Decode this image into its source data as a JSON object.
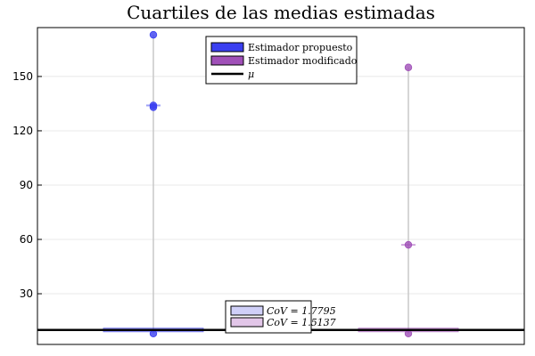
{
  "chart_data": {
    "type": "box",
    "title": "Cuartiles de las medias estimadas",
    "xlabel": "",
    "ylabel": "",
    "ylim": [
      2,
      177
    ],
    "yticks": [
      30,
      60,
      90,
      120,
      150
    ],
    "grid": true,
    "legend_position": "top-center",
    "mu": 10,
    "series": [
      {
        "name": "Estimador propuesto",
        "color": "#3a3ff0",
        "min": 8,
        "q1": 9,
        "median": 10,
        "q3": 11,
        "whisker_high": 12,
        "mean": 134,
        "outliers": [
          173,
          134,
          133,
          8
        ]
      },
      {
        "name": "Estimador modificado",
        "color": "#a050b8",
        "min": 8,
        "q1": 9,
        "median": 10,
        "q3": 11,
        "whisker_high": 12,
        "mean": 57,
        "outliers": [
          155,
          57,
          8
        ]
      }
    ],
    "mu_label": "μ",
    "cov_legend": [
      {
        "label": "CoV = 1.7795",
        "color": "#d0d0f8"
      },
      {
        "label": "CoV = 1.5137",
        "color": "#e2c6e8"
      }
    ]
  }
}
